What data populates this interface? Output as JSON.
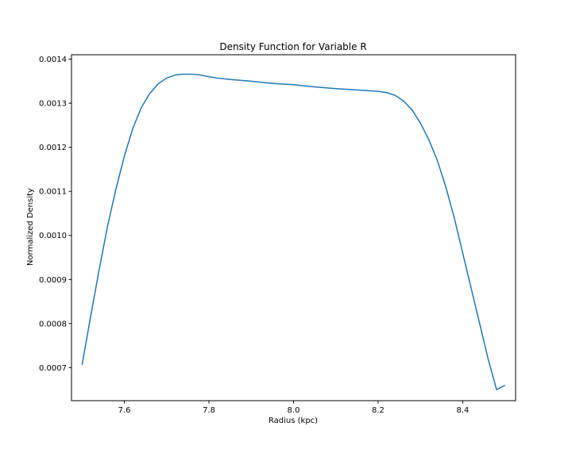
{
  "chart_data": {
    "type": "line",
    "title": "Density Function for Variable R",
    "xlabel": "Radius (kpc)",
    "ylabel": "Normalized Density",
    "xlim": [
      7.475,
      8.525
    ],
    "ylim": [
      0.000625,
      0.00141
    ],
    "xticks": [
      7.6,
      7.8,
      8.0,
      8.2,
      8.4
    ],
    "xtick_labels": [
      "7.6",
      "7.8",
      "8.0",
      "8.2",
      "8.4"
    ],
    "yticks": [
      0.0007,
      0.0008,
      0.0009,
      0.001,
      0.0011,
      0.0012,
      0.0013,
      0.0014
    ],
    "ytick_labels": [
      "0.0007",
      "0.0008",
      "0.0009",
      "0.0010",
      "0.0011",
      "0.0012",
      "0.0013",
      "0.0014"
    ],
    "grid": false,
    "line_color": "#1f77b4",
    "series": [
      {
        "x": [
          7.5,
          7.52,
          7.54,
          7.56,
          7.58,
          7.6,
          7.62,
          7.64,
          7.66,
          7.68,
          7.7,
          7.72,
          7.74,
          7.76,
          7.78,
          7.8,
          7.82,
          7.85,
          7.9,
          7.95,
          8.0,
          8.05,
          8.1,
          8.15,
          8.2,
          8.22,
          8.24,
          8.26,
          8.28,
          8.3,
          8.32,
          8.34,
          8.36,
          8.38,
          8.4,
          8.42,
          8.44,
          8.46,
          8.48,
          8.5
        ],
        "y": [
          0.000706,
          0.000815,
          0.00092,
          0.00102,
          0.001105,
          0.00118,
          0.001243,
          0.00129,
          0.001322,
          0.001344,
          0.001357,
          0.001364,
          0.001366,
          0.001366,
          0.001364,
          0.00136,
          0.001357,
          0.001354,
          0.00135,
          0.001345,
          0.001342,
          0.001337,
          0.001333,
          0.00133,
          0.001327,
          0.001324,
          0.001318,
          0.001305,
          0.001285,
          0.001255,
          0.001217,
          0.00117,
          0.00111,
          0.00104,
          0.00096,
          0.00088,
          0.0008,
          0.00072,
          0.00065,
          0.00066
        ]
      }
    ]
  }
}
